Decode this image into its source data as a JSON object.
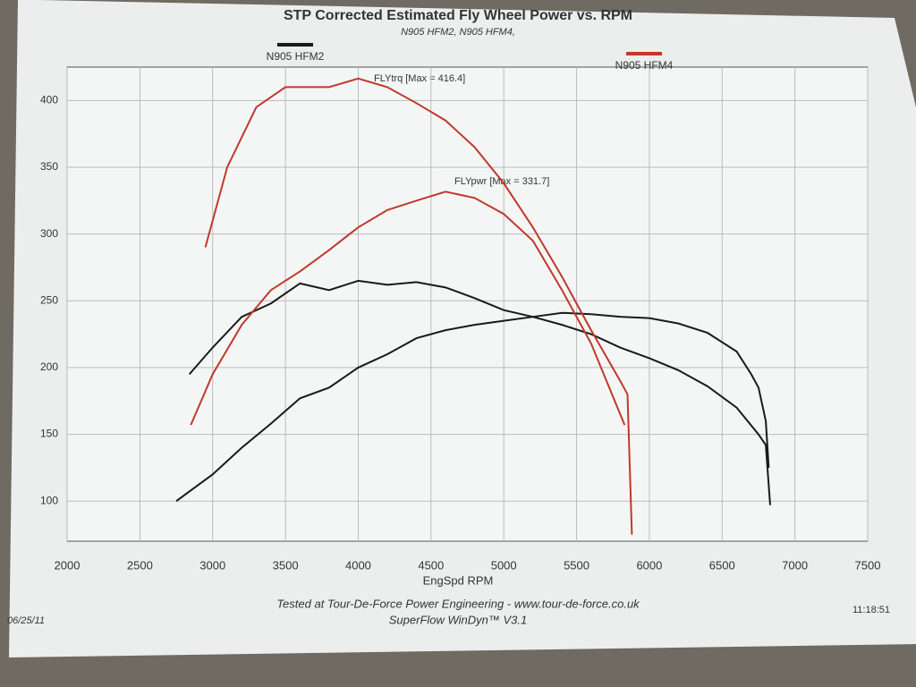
{
  "chart_data": {
    "type": "line",
    "title": "STP Corrected Estimated Fly Wheel Power vs. RPM",
    "subtitle": "N905 HFM2, N905 HFM4,",
    "x_label": "EngSpd RPM",
    "xlim": [
      2000,
      7500
    ],
    "xticks": [
      2000,
      2500,
      3000,
      3500,
      4000,
      4500,
      5000,
      5500,
      6000,
      6500,
      7000,
      7500
    ],
    "ylim": [
      70,
      425
    ],
    "yticks": [
      100,
      150,
      200,
      250,
      300,
      350,
      400
    ],
    "grid": true,
    "series": [
      {
        "name": "N905 HFM2",
        "color": "#1a1a1a",
        "x": [
          2840,
          3000,
          3200,
          3400,
          3600,
          3800,
          4000,
          4200,
          4400,
          4600,
          4800,
          5000,
          5200,
          5400,
          5600,
          5800,
          6000,
          6200,
          6400,
          6600,
          6750,
          6800,
          6830
        ],
        "values": [
          195,
          215,
          238,
          248,
          263,
          258,
          265,
          262,
          264,
          260,
          252,
          243,
          238,
          232,
          225,
          215,
          207,
          198,
          186,
          170,
          150,
          142,
          97
        ]
      },
      {
        "name": "N905 HFM2",
        "color": "#1a1a1a",
        "x": [
          2750,
          3000,
          3200,
          3400,
          3600,
          3800,
          4000,
          4200,
          4400,
          4600,
          4800,
          5000,
          5200,
          5400,
          5600,
          5800,
          6000,
          6200,
          6400,
          6600,
          6700,
          6750,
          6800,
          6820
        ],
        "values": [
          100,
          120,
          140,
          158,
          177,
          185,
          200,
          210,
          222,
          228,
          232,
          235,
          238,
          241,
          240,
          238,
          237,
          233,
          226,
          212,
          195,
          185,
          160,
          125
        ]
      },
      {
        "name": "N905 HFM4",
        "color": "#c0392b",
        "x": [
          2950,
          3100,
          3300,
          3500,
          3800,
          4000,
          4200,
          4400,
          4600,
          4800,
          5000,
          5200,
          5400,
          5600,
          5800,
          5850,
          5880
        ],
        "values": [
          290,
          350,
          395,
          410,
          410,
          416.4,
          410,
          398,
          385,
          365,
          338,
          305,
          268,
          228,
          190,
          180,
          75
        ]
      },
      {
        "name": "N905 HFM4",
        "color": "#c0392b",
        "x": [
          2850,
          3000,
          3200,
          3400,
          3600,
          3800,
          4000,
          4200,
          4400,
          4600,
          4800,
          5000,
          5200,
          5400,
          5600,
          5800,
          5830
        ],
        "values": [
          157,
          195,
          232,
          258,
          272,
          288,
          305,
          318,
          325,
          331.7,
          327,
          315,
          295,
          258,
          218,
          165,
          157
        ]
      }
    ],
    "annotations": [
      "FLYtrq [Max = 416.4]",
      "FLYpwr [Max = 331.7]"
    ],
    "footer": [
      "Tested at Tour-De-Force Power Engineering - www.tour-de-force.co.uk",
      "SuperFlow WinDyn™ V3.1"
    ],
    "date": "06/25/11",
    "time": "11:18:51"
  }
}
